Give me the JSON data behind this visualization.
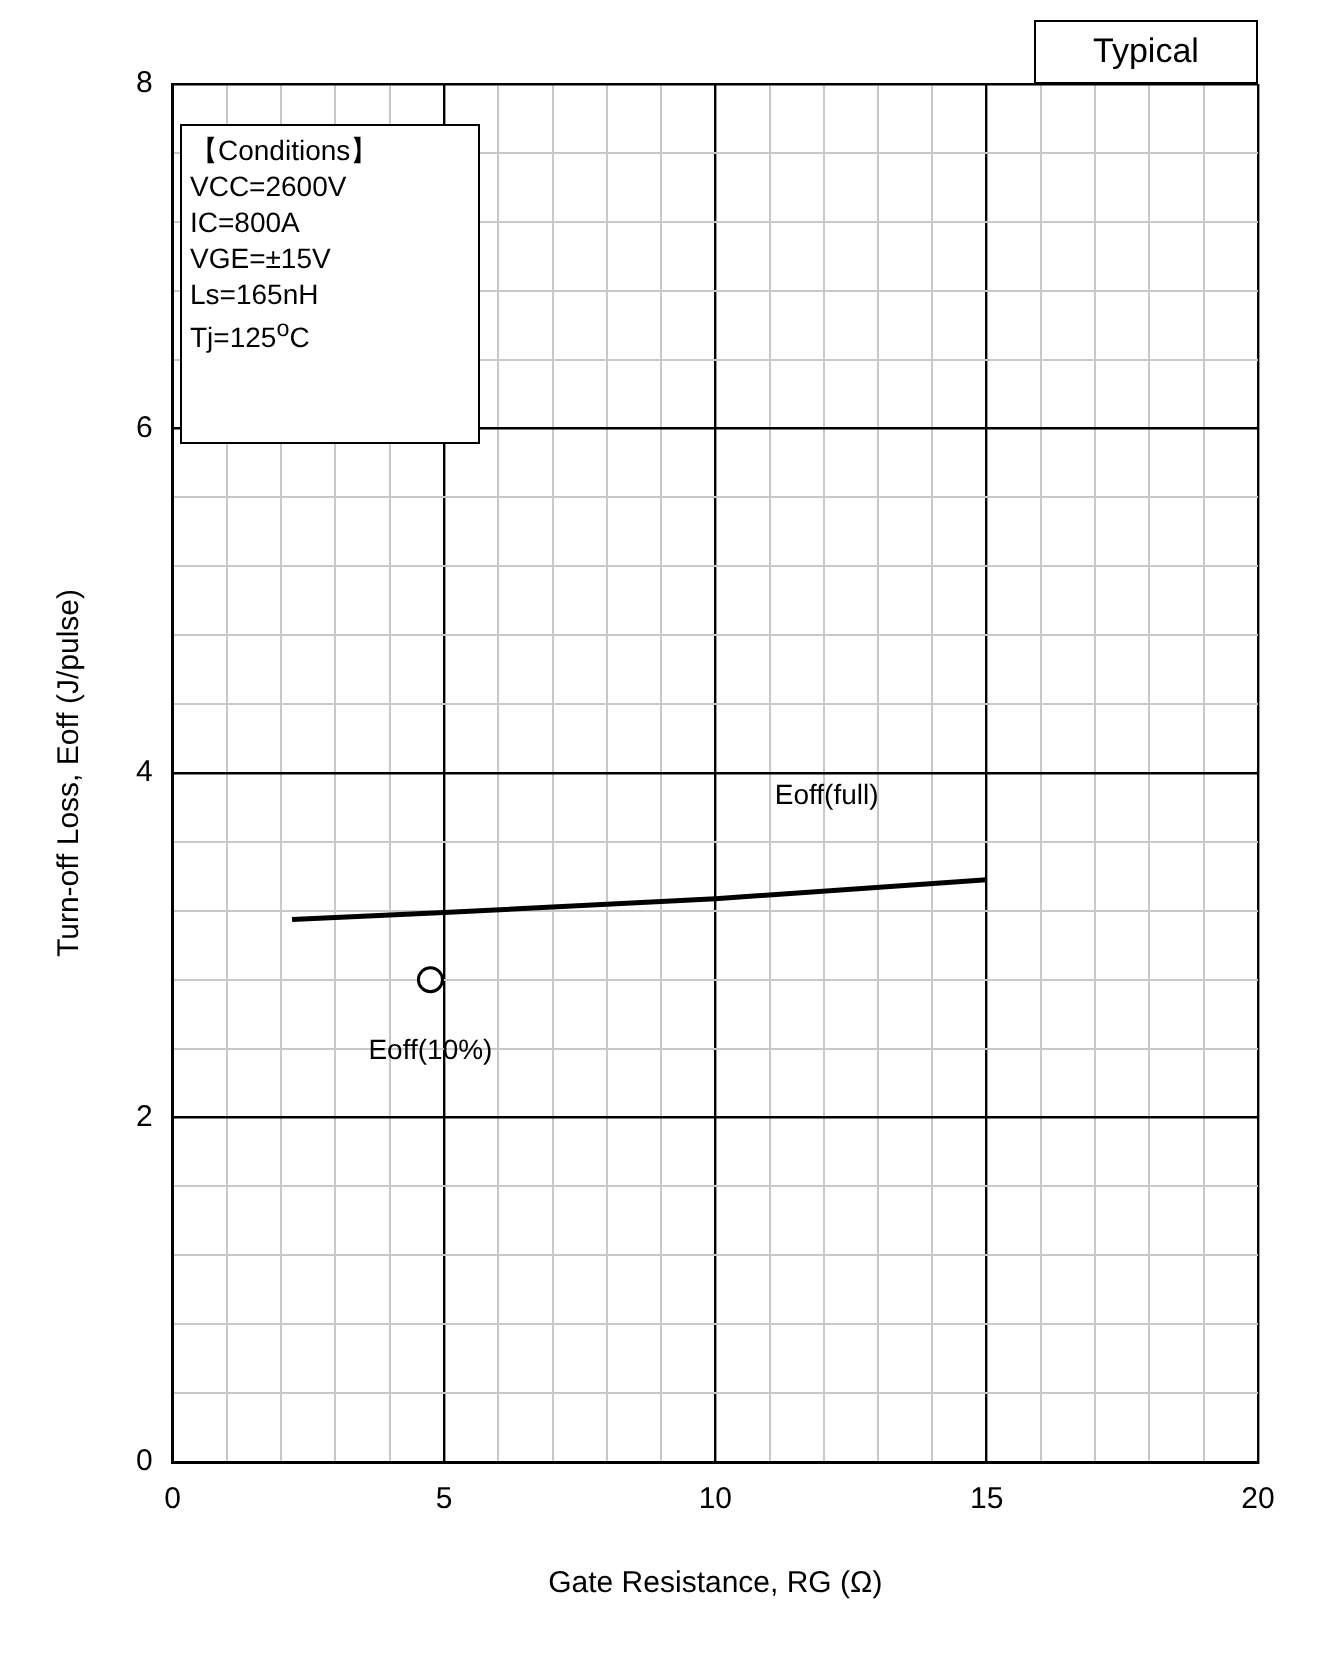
{
  "chart_data": {
    "type": "line",
    "title": "Typical",
    "xlabel": "Gate Resistance, RG (Ω)",
    "ylabel": "Turn-off Loss, Eoff (J/pulse)",
    "annotations": [
      "【Conditions】",
      "VCC=2600V",
      "IC=800A",
      "VGE=±15V",
      "Ls=165nH",
      "Tj=125$^{o}$C"
    ],
    "xlim": [
      0,
      20
    ],
    "xticks": [
      0,
      {
        "value": 1,
        "label": null
      },
      {
        "value": 2,
        "label": null
      },
      {
        "value": 3,
        "label": null
      },
      {
        "value": 4,
        "label": null
      },
      5,
      {
        "value": 6,
        "label": null
      },
      {
        "value": 7,
        "label": null
      },
      {
        "value": 8,
        "label": null
      },
      {
        "value": 9,
        "label": null
      },
      10,
      {
        "value": 11,
        "label": null
      },
      {
        "value": 12,
        "label": null
      },
      {
        "value": 13,
        "label": null
      },
      {
        "value": 14,
        "label": null
      },
      15,
      {
        "value": 16,
        "label": null
      },
      {
        "value": 17,
        "label": null
      },
      {
        "value": 18,
        "label": null
      },
      {
        "value": 19,
        "label": null
      },
      20
    ],
    "ylim": [
      0,
      8
    ],
    "yticks": [
      0,
      {
        "value": 0.4,
        "label": null
      },
      {
        "value": 0.8,
        "label": null
      },
      {
        "value": 1.2,
        "label": null
      },
      {
        "value": 1.6,
        "label": null
      },
      2,
      {
        "value": 2.4,
        "label": null
      },
      {
        "value": 2.8,
        "label": null
      },
      {
        "value": 3.2,
        "label": null
      },
      {
        "value": 3.6,
        "label": null
      },
      4,
      {
        "value": 4.4,
        "label": null
      },
      {
        "value": 4.8,
        "label": null
      },
      {
        "value": 5.2,
        "label": null
      },
      {
        "value": 5.6,
        "label": null
      },
      6,
      {
        "value": 6.4,
        "label": null
      },
      {
        "value": 6.8,
        "label": null
      },
      {
        "value": 7.2,
        "label": null
      },
      {
        "value": 7.6,
        "label": null
      },
      8
    ],
    "grid": true,
    "legend": false,
    "series": [
      {
        "name": "Eoff(full)",
        "color": "#000000",
        "x": [
          2.2,
          5,
          10,
          15
        ],
        "values": [
          3.15,
          3.19,
          3.27,
          3.38
        ],
        "marker": "none",
        "line_style": "solid"
      },
      {
        "name": "Eoff(10%)",
        "type": "scatter",
        "color": "#000000",
        "x": [
          4.75
        ],
        "values": [
          2.8
        ],
        "marker": "circle"
      }
    ]
  }
}
